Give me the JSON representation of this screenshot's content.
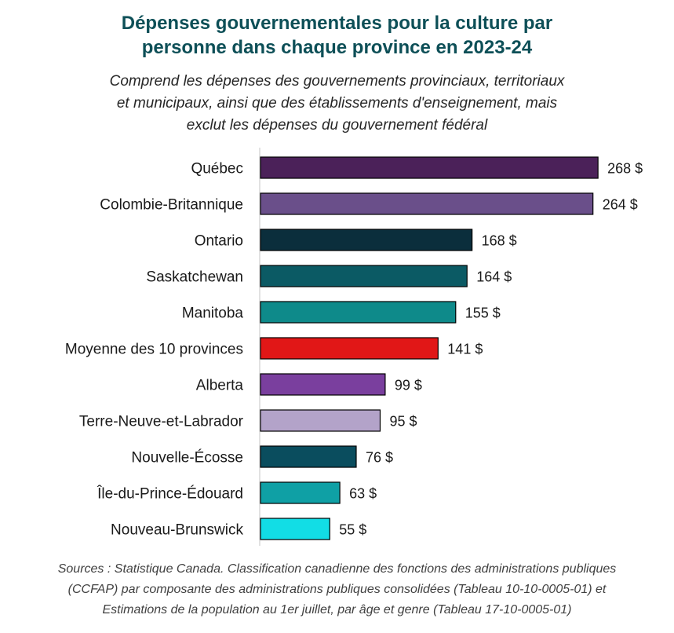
{
  "header": {
    "title_lines": [
      "Dépenses gouvernementales pour la culture par",
      "personne dans chaque province en 2023-24"
    ],
    "subtitle_lines": [
      "Comprend les dépenses des gouvernements provinciaux, territoriaux",
      "et municipaux, ainsi que des établissements d'enseignement, mais",
      "exclut les dépenses du gouvernement fédéral"
    ]
  },
  "footer": {
    "source_lines": [
      "Sources : Statistique Canada. Classification canadienne des fonctions des administrations publiques",
      "(CCFAP) par composante des administrations publiques consolidées (Tableau 10-10-0005-01) et",
      "Estimations de la population au 1er juillet, par âge et genre (Tableau 17-10-0005-01)"
    ]
  },
  "chart_data": {
    "type": "bar",
    "orientation": "horizontal",
    "title": "Dépenses gouvernementales pour la culture par personne dans chaque province en 2023-24",
    "subtitle": "Comprend les dépenses des gouvernements provinciaux, territoriaux et municipaux, ainsi que des établissements d'enseignement, mais exclut les dépenses du gouvernement fédéral",
    "xlabel": "",
    "ylabel": "",
    "categories": [
      "Québec",
      "Colombie-Britannique",
      "Ontario",
      "Saskatchewan",
      "Manitoba",
      "Moyenne des 10 provinces",
      "Alberta",
      "Terre-Neuve-et-Labrador",
      "Nouvelle-Écosse",
      "Île-du-Prince-Édouard",
      "Nouveau-Brunswick"
    ],
    "values": [
      268,
      264,
      168,
      164,
      155,
      141,
      99,
      95,
      76,
      63,
      55
    ],
    "value_labels": [
      "268 $",
      "264 $",
      "168 $",
      "164 $",
      "155 $",
      "141 $",
      "99 $",
      "95 $",
      "76 $",
      "63 $",
      "55 $"
    ],
    "colors": [
      "#4b2159",
      "#6a4f8a",
      "#0b2e3c",
      "#0b5a64",
      "#0e8a8a",
      "#e11717",
      "#7a3f9e",
      "#b3a3c9",
      "#0a4d5e",
      "#0fa0a5",
      "#12dde5"
    ],
    "xlim": [
      0,
      270
    ],
    "grid": false,
    "legend": "none"
  }
}
